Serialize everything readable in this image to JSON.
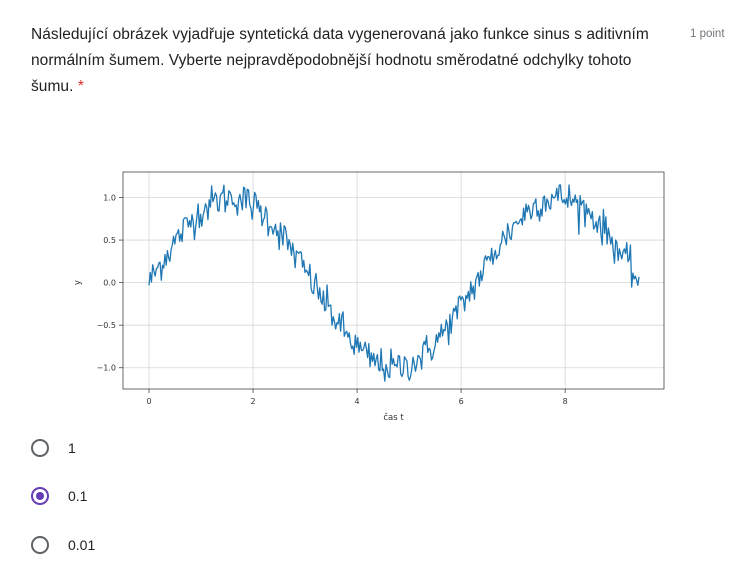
{
  "question": {
    "text": "Následující obrázek vyjadřuje syntetická data vygenerovaná jako funkce sinus s aditivním normálním šumem. Vyberte nejpravděpodobnější hodnotu směrodatné odchylky tohoto šumu.",
    "required_marker": "*",
    "points": "1 point"
  },
  "options": [
    {
      "label": "1",
      "selected": false
    },
    {
      "label": "0.1",
      "selected": true
    },
    {
      "label": "0.01",
      "selected": false
    }
  ],
  "colors": {
    "accent": "#673ab7",
    "line": "#1f77b4",
    "required": "#d93025"
  },
  "chart_data": {
    "type": "line",
    "title": "",
    "xlabel": "čas t",
    "ylabel": "y",
    "xlim": [
      -0.5,
      9.9
    ],
    "ylim": [
      -1.25,
      1.3
    ],
    "x_ticks": [
      0,
      2,
      4,
      6,
      8
    ],
    "y_ticks": [
      1.0,
      0.5,
      0.0,
      -0.5,
      -1.0
    ],
    "x_tick_labels": [
      "0",
      "2",
      "4",
      "6",
      "8"
    ],
    "y_tick_labels": [
      "1.0",
      "0.5",
      "0.0",
      "−0.5",
      "−1.0"
    ],
    "grid": true,
    "series": [
      {
        "function": "sin(t) + noise",
        "x_start": 0,
        "x_end": 9.42,
        "points": 400,
        "noise_std": 0.1
      }
    ]
  }
}
